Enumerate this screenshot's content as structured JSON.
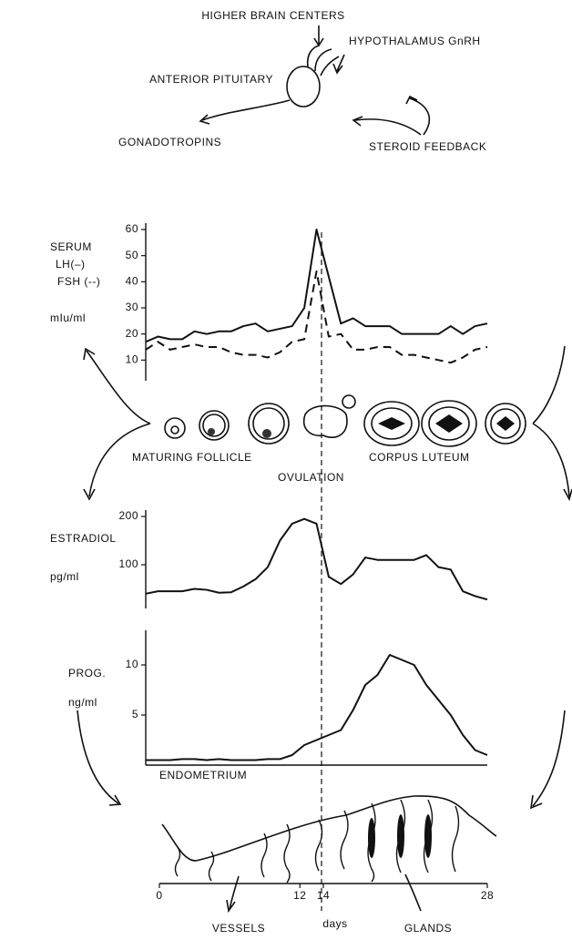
{
  "diagram": {
    "higher_brain_centers": "HIGHER BRAIN CENTERS",
    "hypothalamus": "HYPOTHALAMUS GnRH",
    "anterior_pituitary": "ANTERIOR PITUITARY",
    "gonadotropins": "GONADOTROPINS",
    "steroid_feedback": "STEROID FEEDBACK",
    "maturing_follicle": "MATURING FOLLICLE",
    "ovulation": "OVULATION",
    "corpus_luteum": "CORPUS LUTEUM"
  },
  "chart_data": [
    {
      "type": "line",
      "ylabel": "SERUM",
      "yunit": "mIu/ml",
      "x": [
        0,
        1,
        2,
        3,
        4,
        5,
        6,
        7,
        8,
        9,
        10,
        11,
        12,
        13,
        14,
        15,
        16,
        17,
        18,
        19,
        20,
        21,
        22,
        23,
        24,
        25,
        26,
        27,
        28
      ],
      "xlim": [
        0,
        28
      ],
      "ylim": [
        0,
        60
      ],
      "yticks": [
        10,
        20,
        30,
        40,
        50,
        60
      ],
      "series": [
        {
          "name": "LH(–)",
          "color": "#111111",
          "style": "solid",
          "values": [
            17,
            19,
            18,
            18,
            21,
            20,
            21,
            21,
            23,
            24,
            21,
            22,
            23,
            30,
            60,
            42,
            24,
            26,
            23,
            23,
            23,
            20,
            20,
            20,
            20,
            23,
            20,
            23,
            24
          ]
        },
        {
          "name": "FSH (--)",
          "color": "#111111",
          "style": "dashed",
          "values": [
            14,
            17,
            14,
            15,
            16,
            15,
            15,
            13,
            12,
            12,
            11,
            13,
            17,
            18,
            44,
            19,
            20,
            14,
            14,
            15,
            15,
            12,
            12,
            11,
            10,
            9,
            11,
            14,
            15
          ]
        }
      ]
    },
    {
      "type": "line",
      "ylabel": "ESTRADIOL",
      "yunit": "pg/ml",
      "x": [
        0,
        1,
        2,
        3,
        4,
        5,
        6,
        7,
        8,
        9,
        10,
        11,
        12,
        13,
        14,
        15,
        16,
        17,
        18,
        19,
        20,
        21,
        22,
        23,
        24,
        25,
        26,
        27,
        28
      ],
      "xlim": [
        0,
        28
      ],
      "ylim": [
        0,
        200
      ],
      "yticks": [
        100,
        200
      ],
      "series": [
        {
          "name": "ESTRADIOL",
          "color": "#111111",
          "style": "solid",
          "values": [
            40,
            45,
            45,
            45,
            50,
            48,
            42,
            43,
            55,
            70,
            95,
            150,
            185,
            195,
            185,
            75,
            60,
            80,
            115,
            110,
            110,
            110,
            110,
            120,
            95,
            90,
            45,
            35,
            28
          ]
        }
      ]
    },
    {
      "type": "line",
      "ylabel": "PROG.",
      "yunit": "ng/ml",
      "x": [
        0,
        1,
        2,
        3,
        4,
        5,
        6,
        7,
        8,
        9,
        10,
        11,
        12,
        13,
        14,
        15,
        16,
        17,
        18,
        19,
        20,
        21,
        22,
        23,
        24,
        25,
        26,
        27,
        28
      ],
      "xlim": [
        0,
        28
      ],
      "ylim": [
        0,
        13
      ],
      "yticks": [
        5,
        10
      ],
      "series": [
        {
          "name": "PROG.",
          "color": "#111111",
          "style": "solid",
          "values": [
            0.5,
            0.5,
            0.5,
            0.6,
            0.6,
            0.5,
            0.6,
            0.5,
            0.5,
            0.5,
            0.6,
            0.6,
            1,
            2,
            2.5,
            3,
            3.5,
            5.5,
            8,
            9,
            11,
            10.5,
            10,
            8,
            6.5,
            5,
            3,
            1.5,
            1
          ]
        }
      ]
    },
    {
      "type": "endometrium",
      "title": "ENDOMETRIUM",
      "xlabel": "days",
      "xlim": [
        0,
        28
      ],
      "xticks": [
        0,
        12,
        14,
        28
      ],
      "annotations": [
        "VESSELS",
        "GLANDS"
      ]
    }
  ]
}
